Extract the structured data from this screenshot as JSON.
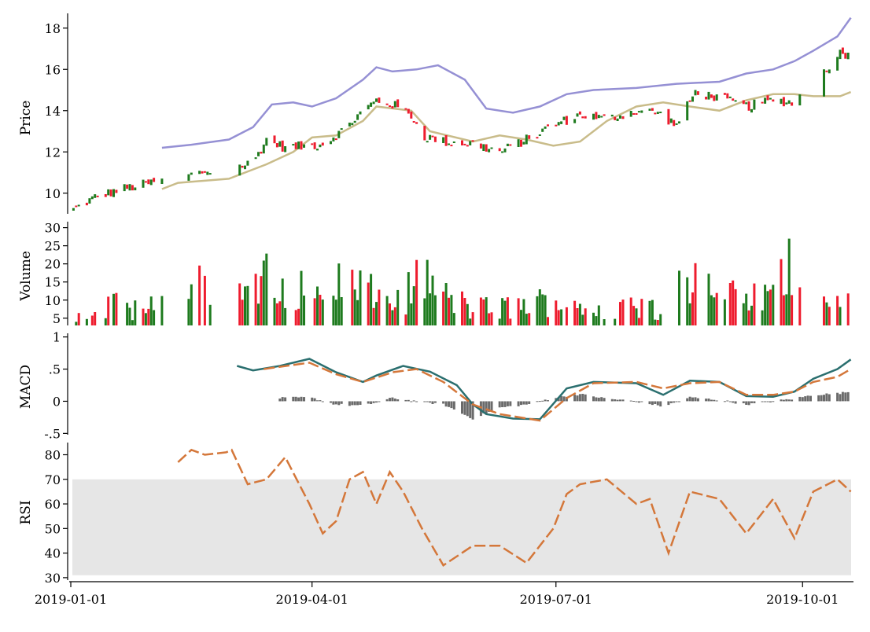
{
  "chart_data": {
    "type": "financial-multi-panel",
    "x_axis": {
      "tick_labels": [
        "2019-01-01",
        "2019-04-01",
        "2019-07-01",
        "2019-10-01"
      ],
      "tick_dates": [
        "2019-01-01",
        "2019-04-01",
        "2019-07-01",
        "2019-10-01"
      ],
      "range": [
        "2019-01-01",
        "2019-10-20"
      ]
    },
    "colors": {
      "up": "#1e7b1e",
      "down": "#ee1c2e",
      "upper_band": "#9590d4",
      "lower_band": "#c9bc8a",
      "macd_line": "#2a6f6f",
      "signal_line": "#d4773a",
      "histogram": "#6b6b6b",
      "rsi_line": "#d4773a",
      "rsi_band": "#e6e6e6"
    },
    "price": {
      "ylabel": "Price",
      "yticks": [
        "10",
        "12",
        "14",
        "16",
        "18"
      ],
      "ylim": [
        9,
        18.6
      ],
      "close_key": [
        [
          "2019-01-02",
          9.2
        ],
        [
          "2019-01-10",
          9.8
        ],
        [
          "2019-01-20",
          10.2
        ],
        [
          "2019-01-31",
          10.5
        ],
        [
          "2019-02-15",
          10.9
        ],
        [
          "2019-02-22",
          11.1
        ],
        [
          "2019-02-28",
          11.0
        ],
        [
          "2019-03-05",
          11.3
        ],
        [
          "2019-03-10",
          11.5
        ],
        [
          "2019-03-15",
          12.6
        ],
        [
          "2019-03-22",
          12.2
        ],
        [
          "2019-03-31",
          12.3
        ],
        [
          "2019-04-05",
          12.4
        ],
        [
          "2019-04-12",
          13.0
        ],
        [
          "2019-04-20",
          14.0
        ],
        [
          "2019-04-25",
          14.5
        ],
        [
          "2019-05-01",
          14.3
        ],
        [
          "2019-05-08",
          13.8
        ],
        [
          "2019-05-12",
          12.8
        ],
        [
          "2019-05-20",
          12.5
        ],
        [
          "2019-05-31",
          12.4
        ],
        [
          "2019-06-10",
          12.0
        ],
        [
          "2019-06-20",
          12.6
        ],
        [
          "2019-06-30",
          13.3
        ],
        [
          "2019-07-10",
          13.8
        ],
        [
          "2019-07-20",
          13.6
        ],
        [
          "2019-07-31",
          14.0
        ],
        [
          "2019-08-08",
          13.9
        ],
        [
          "2019-08-15",
          13.3
        ],
        [
          "2019-08-22",
          14.9
        ],
        [
          "2019-08-31",
          14.6
        ],
        [
          "2019-09-10",
          14.2
        ],
        [
          "2019-09-20",
          14.5
        ],
        [
          "2019-09-28",
          14.4
        ],
        [
          "2019-10-05",
          15.6
        ],
        [
          "2019-10-10",
          16.0
        ],
        [
          "2019-10-14",
          16.8
        ],
        [
          "2019-10-19",
          16.7
        ]
      ],
      "gaps": [
        [
          "2019-02-05",
          "2019-02-13"
        ],
        [
          "2019-02-25",
          "2019-03-04"
        ],
        [
          "2019-10-01",
          "2019-10-08"
        ]
      ],
      "upper_band": [
        [
          "2019-02-04",
          12.2
        ],
        [
          "2019-02-15",
          12.35
        ],
        [
          "2019-03-01",
          12.6
        ],
        [
          "2019-03-10",
          13.2
        ],
        [
          "2019-03-17",
          14.3
        ],
        [
          "2019-03-25",
          14.4
        ],
        [
          "2019-04-01",
          14.2
        ],
        [
          "2019-04-10",
          14.6
        ],
        [
          "2019-04-20",
          15.5
        ],
        [
          "2019-04-25",
          16.1
        ],
        [
          "2019-05-01",
          15.9
        ],
        [
          "2019-05-10",
          16.0
        ],
        [
          "2019-05-18",
          16.2
        ],
        [
          "2019-05-28",
          15.5
        ],
        [
          "2019-06-05",
          14.1
        ],
        [
          "2019-06-15",
          13.9
        ],
        [
          "2019-06-25",
          14.2
        ],
        [
          "2019-07-05",
          14.8
        ],
        [
          "2019-07-15",
          15.0
        ],
        [
          "2019-07-31",
          15.1
        ],
        [
          "2019-08-15",
          15.3
        ],
        [
          "2019-08-31",
          15.4
        ],
        [
          "2019-09-10",
          15.8
        ],
        [
          "2019-09-20",
          16.0
        ],
        [
          "2019-09-28",
          16.4
        ],
        [
          "2019-10-05",
          16.9
        ],
        [
          "2019-10-14",
          17.6
        ],
        [
          "2019-10-19",
          18.5
        ]
      ],
      "lower_band": [
        [
          "2019-02-04",
          10.2
        ],
        [
          "2019-02-10",
          10.5
        ],
        [
          "2019-03-01",
          10.7
        ],
        [
          "2019-03-15",
          11.4
        ],
        [
          "2019-03-25",
          12.0
        ],
        [
          "2019-04-01",
          12.7
        ],
        [
          "2019-04-10",
          12.8
        ],
        [
          "2019-04-20",
          13.5
        ],
        [
          "2019-04-25",
          14.2
        ],
        [
          "2019-05-08",
          14.0
        ],
        [
          "2019-05-15",
          13.0
        ],
        [
          "2019-05-31",
          12.5
        ],
        [
          "2019-06-10",
          12.8
        ],
        [
          "2019-06-20",
          12.6
        ],
        [
          "2019-06-30",
          12.3
        ],
        [
          "2019-07-10",
          12.5
        ],
        [
          "2019-07-20",
          13.5
        ],
        [
          "2019-07-31",
          14.2
        ],
        [
          "2019-08-10",
          14.4
        ],
        [
          "2019-08-20",
          14.2
        ],
        [
          "2019-08-31",
          14.0
        ],
        [
          "2019-09-10",
          14.5
        ],
        [
          "2019-09-20",
          14.8
        ],
        [
          "2019-09-28",
          14.8
        ],
        [
          "2019-10-05",
          14.7
        ],
        [
          "2019-10-15",
          14.7
        ],
        [
          "2019-10-19",
          14.9
        ]
      ]
    },
    "volume": {
      "ylabel": "Volume",
      "yticks": [
        "5",
        "10",
        "15",
        "20",
        "25",
        "30"
      ],
      "ylim": [
        3,
        31
      ],
      "key": [
        [
          "2019-01-02",
          6
        ],
        [
          "2019-01-15",
          10
        ],
        [
          "2019-01-31",
          9
        ],
        [
          "2019-02-10",
          10
        ],
        [
          "2019-02-15",
          21
        ],
        [
          "2019-02-25",
          9
        ],
        [
          "2019-03-05",
          12
        ],
        [
          "2019-03-12",
          17
        ],
        [
          "2019-03-15",
          28
        ],
        [
          "2019-03-20",
          18
        ],
        [
          "2019-03-27",
          15
        ],
        [
          "2019-04-05",
          12
        ],
        [
          "2019-04-12",
          19
        ],
        [
          "2019-04-20",
          15
        ],
        [
          "2019-04-25",
          13
        ],
        [
          "2019-05-01",
          11
        ],
        [
          "2019-05-05",
          12
        ],
        [
          "2019-05-12",
          20
        ],
        [
          "2019-05-20",
          13
        ],
        [
          "2019-05-31",
          9
        ],
        [
          "2019-06-10",
          9
        ],
        [
          "2019-06-20",
          10
        ],
        [
          "2019-06-30",
          12
        ],
        [
          "2019-07-10",
          9
        ],
        [
          "2019-07-20",
          10
        ],
        [
          "2019-07-31",
          9
        ],
        [
          "2019-08-10",
          10
        ],
        [
          "2019-08-15",
          24
        ],
        [
          "2019-08-20",
          18
        ],
        [
          "2019-08-31",
          13
        ],
        [
          "2019-09-10",
          12
        ],
        [
          "2019-09-20",
          13
        ],
        [
          "2019-09-28",
          26
        ],
        [
          "2019-10-05",
          15
        ],
        [
          "2019-10-14",
          13
        ],
        [
          "2019-10-19",
          12
        ]
      ],
      "gaps": [
        [
          "2019-02-05",
          "2019-02-13"
        ],
        [
          "2019-02-25",
          "2019-03-04"
        ],
        [
          "2019-10-01",
          "2019-10-08"
        ]
      ]
    },
    "macd": {
      "ylabel": "MACD",
      "yticks": [
        "-.5",
        "0",
        ".5",
        "1"
      ],
      "ylim": [
        -0.52,
        1.02
      ],
      "macd_line": [
        [
          "2019-03-04",
          0.55
        ],
        [
          "2019-03-10",
          0.48
        ],
        [
          "2019-03-20",
          0.55
        ],
        [
          "2019-03-31",
          0.66
        ],
        [
          "2019-04-10",
          0.45
        ],
        [
          "2019-04-20",
          0.3
        ],
        [
          "2019-04-25",
          0.4
        ],
        [
          "2019-05-05",
          0.55
        ],
        [
          "2019-05-15",
          0.46
        ],
        [
          "2019-05-25",
          0.25
        ],
        [
          "2019-05-31",
          -0.05
        ],
        [
          "2019-06-05",
          -0.2
        ],
        [
          "2019-06-15",
          -0.27
        ],
        [
          "2019-06-25",
          -0.28
        ],
        [
          "2019-07-05",
          0.2
        ],
        [
          "2019-07-15",
          0.3
        ],
        [
          "2019-07-31",
          0.28
        ],
        [
          "2019-08-10",
          0.1
        ],
        [
          "2019-08-20",
          0.32
        ],
        [
          "2019-08-31",
          0.3
        ],
        [
          "2019-09-10",
          0.08
        ],
        [
          "2019-09-20",
          0.07
        ],
        [
          "2019-09-28",
          0.15
        ],
        [
          "2019-10-05",
          0.35
        ],
        [
          "2019-10-14",
          0.5
        ],
        [
          "2019-10-19",
          0.65
        ]
      ],
      "signal_line": [
        [
          "2019-03-14",
          0.5
        ],
        [
          "2019-03-31",
          0.6
        ],
        [
          "2019-04-10",
          0.42
        ],
        [
          "2019-04-20",
          0.3
        ],
        [
          "2019-05-01",
          0.45
        ],
        [
          "2019-05-10",
          0.5
        ],
        [
          "2019-05-20",
          0.3
        ],
        [
          "2019-05-31",
          -0.05
        ],
        [
          "2019-06-10",
          -0.2
        ],
        [
          "2019-06-25",
          -0.3
        ],
        [
          "2019-07-05",
          0.05
        ],
        [
          "2019-07-15",
          0.28
        ],
        [
          "2019-07-31",
          0.3
        ],
        [
          "2019-08-10",
          0.2
        ],
        [
          "2019-08-20",
          0.28
        ],
        [
          "2019-08-31",
          0.3
        ],
        [
          "2019-09-10",
          0.1
        ],
        [
          "2019-09-20",
          0.1
        ],
        [
          "2019-09-28",
          0.15
        ],
        [
          "2019-10-05",
          0.3
        ],
        [
          "2019-10-14",
          0.38
        ],
        [
          "2019-10-19",
          0.5
        ]
      ],
      "histogram": [
        [
          "2019-03-20",
          0.05
        ],
        [
          "2019-03-31",
          0.06
        ],
        [
          "2019-04-10",
          -0.05
        ],
        [
          "2019-04-20",
          -0.07
        ],
        [
          "2019-05-01",
          0.05
        ],
        [
          "2019-05-10",
          0.0
        ],
        [
          "2019-05-20",
          -0.05
        ],
        [
          "2019-05-31",
          -0.27
        ],
        [
          "2019-06-10",
          -0.1
        ],
        [
          "2019-06-20",
          -0.05
        ],
        [
          "2019-07-01",
          0.06
        ],
        [
          "2019-07-10",
          0.11
        ],
        [
          "2019-07-20",
          0.04
        ],
        [
          "2019-07-31",
          0.0
        ],
        [
          "2019-08-10",
          -0.08
        ],
        [
          "2019-08-20",
          0.06
        ],
        [
          "2019-08-31",
          0.02
        ],
        [
          "2019-09-10",
          -0.05
        ],
        [
          "2019-09-20",
          0.0
        ],
        [
          "2019-09-28",
          0.04
        ],
        [
          "2019-10-05",
          0.1
        ],
        [
          "2019-10-14",
          0.12
        ],
        [
          "2019-10-19",
          0.15
        ]
      ]
    },
    "rsi": {
      "ylabel": "RSI",
      "yticks": [
        "30",
        "40",
        "50",
        "60",
        "70",
        "80"
      ],
      "ylim": [
        29,
        84
      ],
      "band": [
        31,
        70
      ],
      "line": [
        [
          "2019-02-10",
          77
        ],
        [
          "2019-02-15",
          82
        ],
        [
          "2019-02-20",
          80
        ],
        [
          "2019-02-28",
          81
        ],
        [
          "2019-03-02",
          82
        ],
        [
          "2019-03-08",
          68
        ],
        [
          "2019-03-15",
          70
        ],
        [
          "2019-03-22",
          79
        ],
        [
          "2019-03-31",
          60
        ],
        [
          "2019-04-05",
          48
        ],
        [
          "2019-04-10",
          53
        ],
        [
          "2019-04-15",
          70
        ],
        [
          "2019-04-20",
          73
        ],
        [
          "2019-04-25",
          60
        ],
        [
          "2019-04-30",
          73
        ],
        [
          "2019-05-05",
          65
        ],
        [
          "2019-05-12",
          50
        ],
        [
          "2019-05-20",
          35
        ],
        [
          "2019-05-31",
          43
        ],
        [
          "2019-06-10",
          43
        ],
        [
          "2019-06-20",
          36
        ],
        [
          "2019-06-30",
          50
        ],
        [
          "2019-07-05",
          64
        ],
        [
          "2019-07-10",
          68
        ],
        [
          "2019-07-20",
          70
        ],
        [
          "2019-07-31",
          60
        ],
        [
          "2019-08-05",
          62
        ],
        [
          "2019-08-12",
          40
        ],
        [
          "2019-08-20",
          65
        ],
        [
          "2019-08-31",
          62
        ],
        [
          "2019-09-10",
          48
        ],
        [
          "2019-09-20",
          62
        ],
        [
          "2019-09-28",
          46
        ],
        [
          "2019-10-05",
          65
        ],
        [
          "2019-10-14",
          70
        ],
        [
          "2019-10-19",
          65
        ]
      ]
    }
  }
}
